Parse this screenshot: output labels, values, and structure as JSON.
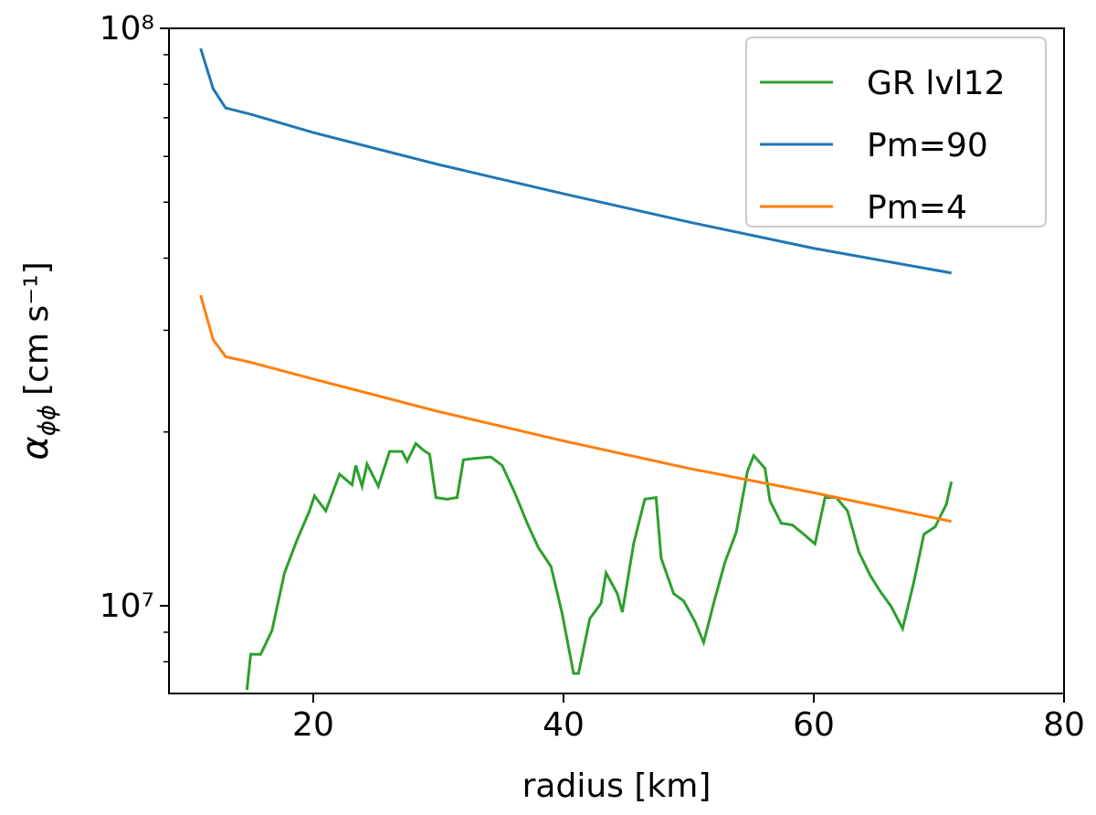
{
  "chart_data": {
    "type": "line",
    "xlabel": "radius [km]",
    "ylabel": {
      "symbol": "α",
      "subscript": "ϕϕ",
      "unit": "[cm s⁻¹]"
    },
    "xlim": [
      8.47,
      80
    ],
    "xticks": [
      20,
      40,
      60,
      80
    ],
    "ylim": [
      7050000,
      100000000
    ],
    "log_y": true,
    "yticks": [
      {
        "value": 10000000,
        "label": "10⁷"
      },
      {
        "value": 100000000,
        "label": "10⁸"
      }
    ],
    "yminorticks": [
      8000000,
      9000000,
      20000000,
      30000000,
      40000000,
      50000000,
      60000000,
      70000000,
      80000000,
      90000000
    ],
    "legend": "upper right",
    "series": [
      {
        "name": "GR lvl12",
        "color": "#2ca02c",
        "x": [
          14.7,
          15.0,
          15.8,
          16.7,
          17.7,
          18.7,
          19.7,
          20.1,
          21.0,
          22.1,
          23.1,
          23.4,
          23.9,
          24.3,
          25.2,
          26.1,
          27.1,
          27.5,
          28.2,
          28.8,
          29.3,
          29.8,
          30.7,
          31.5,
          32.0,
          32.9,
          34.2,
          35.1,
          36.1,
          37.1,
          38.0,
          39.0,
          39.9,
          40.8,
          41.2,
          42.1,
          43.0,
          43.4,
          44.3,
          44.7,
          45.6,
          46.5,
          47.4,
          47.8,
          48.8,
          49.6,
          50.5,
          51.2,
          52.0,
          52.9,
          53.8,
          54.7,
          55.2,
          56.1,
          56.5,
          57.4,
          58.3,
          59.2,
          60.1,
          60.9,
          61.8,
          62.7,
          63.6,
          64.5,
          65.3,
          66.2,
          67.1,
          68.0,
          68.8,
          69.7,
          70.6,
          71.0
        ],
        "values": [
          7150000,
          8240000,
          8240000,
          9060000,
          11400000,
          13000000,
          14600000,
          15500000,
          14600000,
          16900000,
          16200000,
          17500000,
          16100000,
          17600000,
          16100000,
          18500000,
          18500000,
          17800000,
          19100000,
          18600000,
          18300000,
          15400000,
          15300000,
          15400000,
          17900000,
          18000000,
          18100000,
          17500000,
          15700000,
          13900000,
          12600000,
          11700000,
          9680000,
          7640000,
          7640000,
          9500000,
          10100000,
          11400000,
          10500000,
          9750000,
          12800000,
          15300000,
          15400000,
          12100000,
          10500000,
          10200000,
          9400000,
          8640000,
          10100000,
          11900000,
          13400000,
          17100000,
          18200000,
          17300000,
          15200000,
          13900000,
          13800000,
          13300000,
          12800000,
          15400000,
          15400000,
          14600000,
          12400000,
          11300000,
          10600000,
          9960000,
          9130000,
          11000000,
          13300000,
          13700000,
          15000000,
          16400000
        ]
      },
      {
        "name": "Pm=90",
        "color": "#1f77b4",
        "x": [
          11,
          12,
          13,
          15,
          20,
          30,
          40,
          50,
          60,
          71
        ],
        "values": [
          92300000,
          78600000,
          72800000,
          71000000,
          66000000,
          58100000,
          51700000,
          46200000,
          41600000,
          37700000
        ]
      },
      {
        "name": "Pm=4",
        "color": "#ff7f0e",
        "x": [
          11,
          12,
          13,
          15,
          20,
          30,
          40,
          50,
          60,
          71
        ],
        "values": [
          34500000,
          28900000,
          27000000,
          26400000,
          24700000,
          21700000,
          19300000,
          17300000,
          15700000,
          14000000
        ]
      }
    ]
  }
}
